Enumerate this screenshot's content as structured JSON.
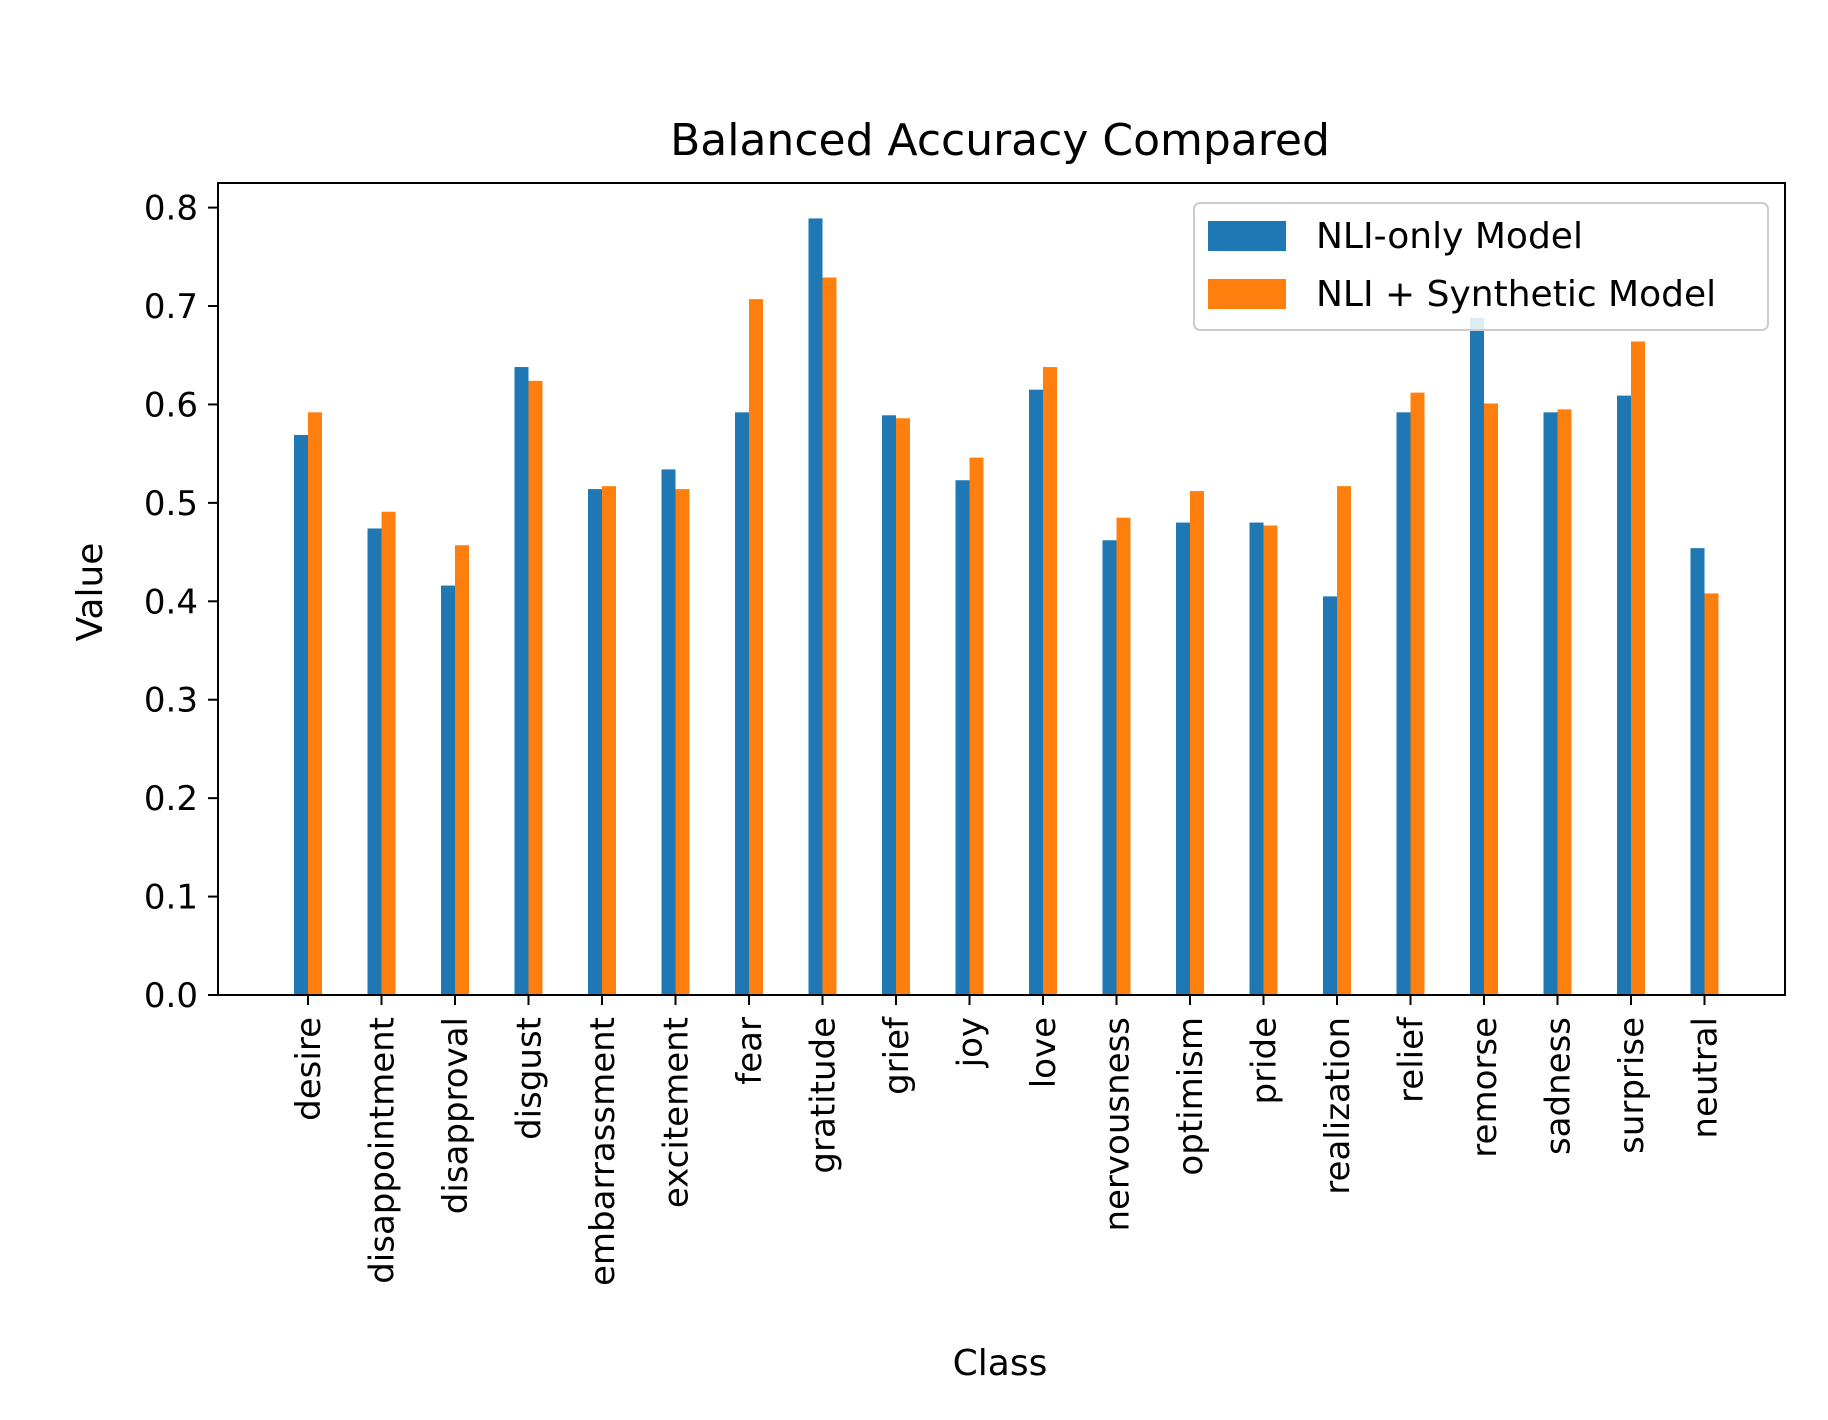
{
  "chart_data": {
    "type": "bar",
    "title": "Balanced Accuracy Compared",
    "xlabel": "Class",
    "ylabel": "Value",
    "ylim": [
      0.0,
      0.825
    ],
    "yticks": [
      "0.0",
      "0.1",
      "0.2",
      "0.3",
      "0.4",
      "0.5",
      "0.6",
      "0.7",
      "0.8"
    ],
    "categories": [
      "desire",
      "disappointment",
      "disapproval",
      "disgust",
      "embarrassment",
      "excitement",
      "fear",
      "gratitude",
      "grief",
      "joy",
      "love",
      "nervousness",
      "optimism",
      "pride",
      "realization",
      "relief",
      "remorse",
      "sadness",
      "surprise",
      "neutral"
    ],
    "series": [
      {
        "name": "NLI-only Model",
        "color": "#1f77b4",
        "values": [
          0.569,
          0.474,
          0.416,
          0.638,
          0.514,
          0.534,
          0.592,
          0.789,
          0.589,
          0.523,
          0.615,
          0.462,
          0.48,
          0.48,
          0.405,
          0.592,
          0.688,
          0.592,
          0.609,
          0.454
        ]
      },
      {
        "name": "NLI + Synthetic Model",
        "color": "#ff7f0e",
        "values": [
          0.592,
          0.491,
          0.457,
          0.624,
          0.517,
          0.514,
          0.707,
          0.729,
          0.586,
          0.546,
          0.638,
          0.485,
          0.512,
          0.477,
          0.517,
          0.612,
          0.601,
          0.595,
          0.664,
          0.408
        ]
      }
    ],
    "legend": "top-right",
    "grid": false
  }
}
